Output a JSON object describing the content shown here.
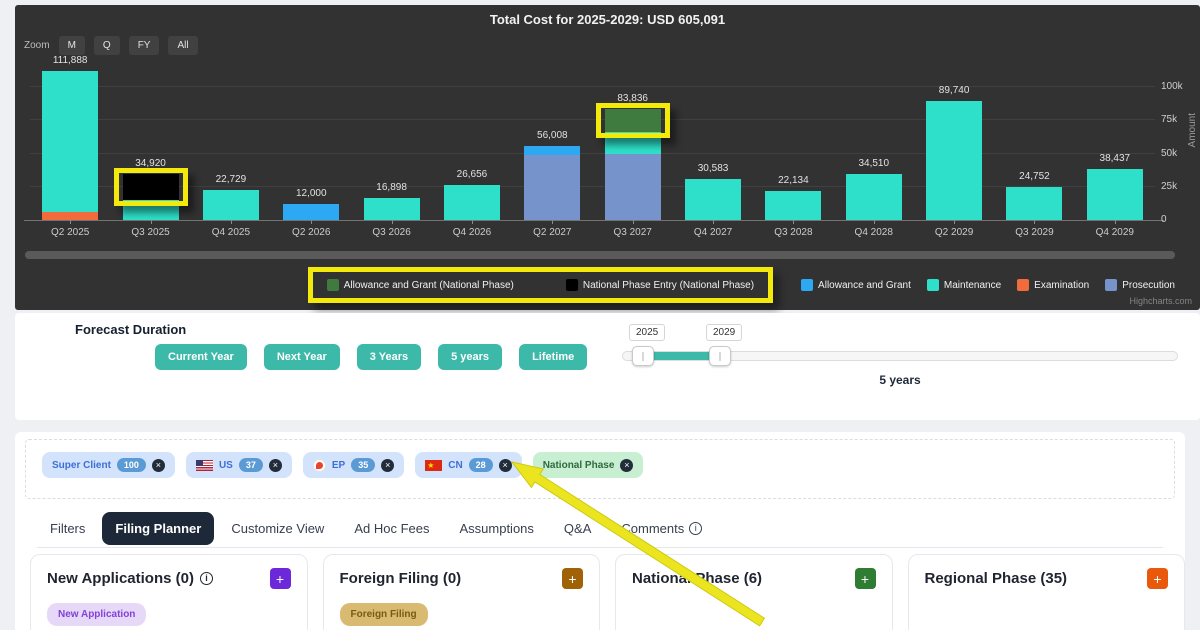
{
  "chart": {
    "title": "Total Cost for 2025-2029: USD 605,091",
    "zoom_label": "Zoom",
    "zoom_buttons": [
      "M",
      "Q",
      "FY",
      "All"
    ],
    "y_axis_title": "Amount",
    "y_ticks": [
      "0",
      "25k",
      "50k",
      "75k",
      "100k"
    ],
    "credit": "Highcharts.com"
  },
  "chart_data": {
    "type": "bar",
    "stacked": true,
    "title": "Total Cost for 2025-2029: USD 605,091",
    "ylabel": "Amount",
    "ylim": [
      0,
      100000
    ],
    "y_tick_step": 25000,
    "categories": [
      "Q2 2025",
      "Q3 2025",
      "Q4 2025",
      "Q2 2026",
      "Q3 2026",
      "Q4 2026",
      "Q2 2027",
      "Q3 2027",
      "Q4 2027",
      "Q3 2028",
      "Q4 2028",
      "Q2 2029",
      "Q3 2029",
      "Q4 2029"
    ],
    "totals": [
      111888,
      34920,
      22729,
      12000,
      16898,
      26656,
      56008,
      83836,
      30583,
      22134,
      34510,
      89740,
      24752,
      38437
    ],
    "series_legend": [
      {
        "name": "Allowance and Grant (National Phase)",
        "color": "#3f7a3f",
        "highlighted": true
      },
      {
        "name": "National Phase Entry (National Phase)",
        "color": "#000000",
        "highlighted": true
      },
      {
        "name": "Allowance and Grant",
        "color": "#2ca9f2",
        "highlighted": false
      },
      {
        "name": "Maintenance",
        "color": "#2ee0c9",
        "highlighted": false
      },
      {
        "name": "Examination",
        "color": "#f26b3c",
        "highlighted": false
      },
      {
        "name": "Prosecution",
        "color": "#7693cc",
        "highlighted": false
      }
    ],
    "bars": [
      {
        "category": "Q2 2025",
        "total": 111888,
        "label": "111,888",
        "segments": [
          {
            "series": "Examination",
            "value": 6000
          },
          {
            "series": "Maintenance",
            "value": 105888
          }
        ]
      },
      {
        "category": "Q3 2025",
        "total": 34920,
        "label": "34,920",
        "segments": [
          {
            "series": "Maintenance",
            "value": 14920
          },
          {
            "series": "National Phase Entry (National Phase)",
            "value": 20000,
            "highlight": true
          }
        ]
      },
      {
        "category": "Q4 2025",
        "total": 22729,
        "label": "22,729",
        "segments": [
          {
            "series": "Maintenance",
            "value": 22729
          }
        ]
      },
      {
        "category": "Q2 2026",
        "total": 12000,
        "label": "12,000",
        "segments": [
          {
            "series": "Allowance and Grant",
            "value": 12000
          }
        ]
      },
      {
        "category": "Q3 2026",
        "total": 16898,
        "label": "16,898",
        "segments": [
          {
            "series": "Maintenance",
            "value": 16898
          }
        ]
      },
      {
        "category": "Q4 2026",
        "total": 26656,
        "label": "26,656",
        "segments": [
          {
            "series": "Maintenance",
            "value": 26656
          }
        ]
      },
      {
        "category": "Q2 2027",
        "total": 56008,
        "label": "56,008",
        "segments": [
          {
            "series": "Prosecution",
            "value": 49000
          },
          {
            "series": "Allowance and Grant",
            "value": 7008
          }
        ]
      },
      {
        "category": "Q3 2027",
        "total": 83836,
        "label": "83,836",
        "segments": [
          {
            "series": "Prosecution",
            "value": 50000
          },
          {
            "series": "Maintenance",
            "value": 15836
          },
          {
            "series": "Allowance and Grant (National Phase)",
            "value": 18000,
            "highlight": true
          }
        ]
      },
      {
        "category": "Q4 2027",
        "total": 30583,
        "label": "30,583",
        "segments": [
          {
            "series": "Maintenance",
            "value": 30583
          }
        ]
      },
      {
        "category": "Q3 2028",
        "total": 22134,
        "label": "22,134",
        "segments": [
          {
            "series": "Maintenance",
            "value": 22134
          }
        ]
      },
      {
        "category": "Q4 2028",
        "total": 34510,
        "label": "34,510",
        "segments": [
          {
            "series": "Maintenance",
            "value": 34510
          }
        ]
      },
      {
        "category": "Q2 2029",
        "total": 89740,
        "label": "89,740",
        "segments": [
          {
            "series": "Maintenance",
            "value": 89740
          }
        ]
      },
      {
        "category": "Q3 2029",
        "total": 24752,
        "label": "24,752",
        "segments": [
          {
            "series": "Maintenance",
            "value": 24752
          }
        ]
      },
      {
        "category": "Q4 2029",
        "total": 38437,
        "label": "38,437",
        "segments": [
          {
            "series": "Maintenance",
            "value": 38437
          }
        ]
      }
    ]
  },
  "forecast": {
    "label": "Forecast Duration",
    "buttons": [
      "Current Year",
      "Next Year",
      "3 Years",
      "5 years",
      "Lifetime"
    ],
    "slider": {
      "start_label": "2025",
      "end_label": "2029",
      "caption": "5 years"
    }
  },
  "filters": {
    "chips": [
      {
        "label": "Super Client",
        "count": "100",
        "type": "blue",
        "flag": null
      },
      {
        "label": "US",
        "count": "37",
        "type": "blue",
        "flag": "us"
      },
      {
        "label": "EP",
        "count": "35",
        "type": "blue",
        "flag": "ep"
      },
      {
        "label": "CN",
        "count": "28",
        "type": "blue",
        "flag": "cn"
      },
      {
        "label": "National Phase",
        "count": null,
        "type": "green",
        "flag": null
      }
    ]
  },
  "tabs": {
    "items": [
      {
        "label": "Filters",
        "active": false,
        "info": false
      },
      {
        "label": "Filing Planner",
        "active": true,
        "info": false
      },
      {
        "label": "Customize View",
        "active": false,
        "info": false
      },
      {
        "label": "Ad Hoc Fees",
        "active": false,
        "info": false
      },
      {
        "label": "Assumptions",
        "active": false,
        "info": false
      },
      {
        "label": "Q&A",
        "active": false,
        "info": false
      },
      {
        "label": "Comments",
        "active": false,
        "info": true
      }
    ]
  },
  "planner_cards": [
    {
      "title": "New Applications (0)",
      "info": true,
      "accent": "#6d28d9",
      "chip": {
        "label": "New Application",
        "bg": "#e6d9f7",
        "color": "#8440d8"
      }
    },
    {
      "title": "Foreign Filing (0)",
      "info": false,
      "accent": "#a16207",
      "chip": {
        "label": "Foreign Filing",
        "bg": "#d8ba70",
        "color": "#7a5c10"
      }
    },
    {
      "title": "National Phase (6)",
      "info": false,
      "accent": "#2e7d32",
      "chip": null
    },
    {
      "title": "Regional Phase (35)",
      "info": false,
      "accent": "#e8590c",
      "chip": null
    }
  ],
  "annotations": {
    "highlight_color": "#f3ea0b",
    "highlighted_legend_items": [
      "Allowance and Grant (National Phase)",
      "National Phase Entry (National Phase)"
    ],
    "highlighted_bar_segments": [
      "Q3 2025 / National Phase Entry (National Phase)",
      "Q3 2027 / Allowance and Grant (National Phase)"
    ],
    "arrow_points_to": "National Phase filter chip"
  }
}
